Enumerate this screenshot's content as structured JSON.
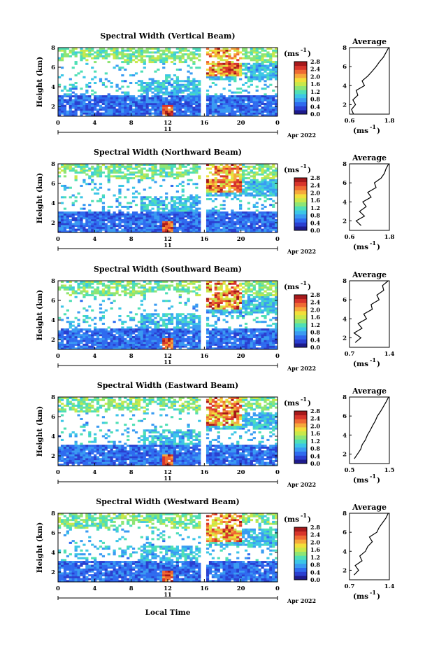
{
  "figure": {
    "xlabel": "Local Time",
    "date_label": "Apr 2022",
    "day_label": "11",
    "ylabel": "Height (km)",
    "unit_label": "(ms",
    "unit_sup": "-1",
    "unit_close": ")",
    "profile_title": "Average",
    "colors": {
      "scale": [
        "#1e1b8c",
        "#2a3fd0",
        "#2f6bef",
        "#3a9bf2",
        "#3cc6e6",
        "#4fdfb5",
        "#8ee574",
        "#c9e84a",
        "#f2df3a",
        "#f6a83a",
        "#ef6a33",
        "#d8352b",
        "#a6191b"
      ],
      "profile_line": "#000000"
    }
  },
  "chart_data": [
    {
      "type": "heatmap",
      "title": "Spectral Width (Vertical Beam)",
      "x_ticks": [
        "0",
        "4",
        "8",
        "12",
        "16",
        "20",
        "0"
      ],
      "x_range_hours": [
        0,
        24
      ],
      "y_ticks": [
        "2",
        "4",
        "6",
        "8"
      ],
      "y_range_km": [
        1,
        8
      ],
      "colorbar_ticks": [
        "2.8",
        "2.4",
        "2.0",
        "1.6",
        "1.2",
        "0.8",
        "0.4",
        "0.0"
      ],
      "colorbar_range": [
        0,
        2.8
      ],
      "data_gap_hours": [
        15.6,
        16.2
      ],
      "profile": {
        "title": "Average",
        "x_ticks": [
          "0.6",
          "1.8"
        ],
        "x_range": [
          0.6,
          1.8
        ],
        "y_ticks": [
          "2",
          "4",
          "6",
          "8"
        ],
        "y_range_km": [
          1,
          8
        ],
        "x_unit": "(ms",
        "x_unit_sup": "-1",
        "x_unit_close": ")",
        "heights_km": [
          1.0,
          1.5,
          2.0,
          2.5,
          3.0,
          3.5,
          4.0,
          4.5,
          5.0,
          5.5,
          6.0,
          6.5,
          7.0,
          7.5,
          8.0
        ],
        "values": [
          0.72,
          0.66,
          0.78,
          0.7,
          0.85,
          0.8,
          1.05,
          0.98,
          1.15,
          1.28,
          1.4,
          1.5,
          1.62,
          1.7,
          1.78
        ]
      }
    },
    {
      "type": "heatmap",
      "title": "Spectral Width (Northward Beam)",
      "x_ticks": [
        "0",
        "4",
        "8",
        "12",
        "16",
        "20",
        "0"
      ],
      "x_range_hours": [
        0,
        24
      ],
      "y_ticks": [
        "2",
        "4",
        "6",
        "8"
      ],
      "y_range_km": [
        1,
        8
      ],
      "colorbar_ticks": [
        "2.8",
        "2.4",
        "2.0",
        "1.6",
        "1.2",
        "0.8",
        "0.4",
        "0.0"
      ],
      "colorbar_range": [
        0,
        2.8
      ],
      "data_gap_hours": [
        15.6,
        16.2
      ],
      "profile": {
        "title": "Average",
        "x_ticks": [
          "0.6",
          "1.8"
        ],
        "x_range": [
          0.6,
          1.8
        ],
        "y_ticks": [
          "2",
          "4",
          "6",
          "8"
        ],
        "y_range_km": [
          1,
          8
        ],
        "x_unit": "(ms",
        "x_unit_sup": "-1",
        "x_unit_close": ")",
        "heights_km": [
          1.5,
          2.0,
          2.5,
          3.0,
          3.5,
          4.0,
          4.5,
          5.0,
          5.5,
          6.0,
          6.5,
          7.0,
          7.5,
          8.0
        ],
        "values": [
          0.95,
          0.8,
          1.05,
          0.9,
          1.1,
          1.0,
          1.25,
          1.15,
          1.4,
          1.35,
          1.55,
          1.65,
          1.7,
          1.78
        ]
      }
    },
    {
      "type": "heatmap",
      "title": "Spectral Width (Southward Beam)",
      "x_ticks": [
        "0",
        "4",
        "8",
        "12",
        "16",
        "20",
        "0"
      ],
      "x_range_hours": [
        0,
        24
      ],
      "y_ticks": [
        "2",
        "4",
        "6",
        "8"
      ],
      "y_range_km": [
        1,
        8
      ],
      "colorbar_ticks": [
        "2.8",
        "2.4",
        "2.0",
        "1.6",
        "1.2",
        "0.8",
        "0.4",
        "0.0"
      ],
      "colorbar_range": [
        0,
        2.8
      ],
      "data_gap_hours": [
        15.6,
        16.2
      ],
      "profile": {
        "title": "Average",
        "x_ticks": [
          "0.7",
          "1.4"
        ],
        "x_range": [
          0.7,
          1.4
        ],
        "y_ticks": [
          "2",
          "4",
          "6",
          "8"
        ],
        "y_range_km": [
          1,
          8
        ],
        "x_unit": "(ms",
        "x_unit_sup": "-1",
        "x_unit_close": ")",
        "heights_km": [
          1.5,
          2.0,
          2.5,
          3.0,
          3.5,
          4.0,
          4.5,
          5.0,
          5.5,
          6.0,
          6.5,
          7.0,
          7.5,
          8.0
        ],
        "values": [
          0.8,
          0.9,
          0.78,
          0.92,
          0.85,
          1.0,
          0.95,
          1.1,
          1.08,
          1.22,
          1.18,
          1.3,
          1.28,
          1.38
        ]
      }
    },
    {
      "type": "heatmap",
      "title": "Spectral Width (Eastward Beam)",
      "x_ticks": [
        "0",
        "4",
        "8",
        "12",
        "16",
        "20",
        "0"
      ],
      "x_range_hours": [
        0,
        24
      ],
      "y_ticks": [
        "2",
        "4",
        "6",
        "8"
      ],
      "y_range_km": [
        1,
        8
      ],
      "colorbar_ticks": [
        "2.8",
        "2.4",
        "2.0",
        "1.6",
        "1.2",
        "0.8",
        "0.4",
        "0.0"
      ],
      "colorbar_range": [
        0,
        2.8
      ],
      "data_gap_hours": [
        15.6,
        16.2
      ],
      "profile": {
        "title": "Average",
        "x_ticks": [
          "0.5",
          "1.5"
        ],
        "x_range": [
          0.5,
          1.5
        ],
        "y_ticks": [
          "2",
          "4",
          "6",
          "8"
        ],
        "y_range_km": [
          1,
          8
        ],
        "x_unit": "(ms",
        "x_unit_sup": "-1",
        "x_unit_close": ")",
        "heights_km": [
          1.5,
          2.0,
          2.5,
          3.0,
          3.5,
          4.0,
          4.5,
          5.0,
          5.5,
          6.0,
          6.5,
          7.0,
          7.5,
          8.0
        ],
        "values": [
          0.62,
          0.7,
          0.78,
          0.82,
          0.9,
          0.95,
          1.02,
          1.08,
          1.15,
          1.2,
          1.28,
          1.35,
          1.42,
          1.48
        ]
      }
    },
    {
      "type": "heatmap",
      "title": "Spectral Width (Westward Beam)",
      "x_ticks": [
        "0",
        "4",
        "8",
        "12",
        "16",
        "20",
        "0"
      ],
      "x_range_hours": [
        0,
        24
      ],
      "y_ticks": [
        "2",
        "4",
        "6",
        "8"
      ],
      "y_range_km": [
        1,
        8
      ],
      "colorbar_ticks": [
        "2.8",
        "2.4",
        "2.0",
        "1.6",
        "1.2",
        "0.8",
        "0.4",
        "0.0"
      ],
      "colorbar_range": [
        0,
        2.8
      ],
      "data_gap_hours": [
        15.6,
        16.2
      ],
      "profile": {
        "title": "Average",
        "x_ticks": [
          "0.7",
          "1.4"
        ],
        "x_range": [
          0.7,
          1.4
        ],
        "y_ticks": [
          "2",
          "4",
          "6",
          "8"
        ],
        "y_range_km": [
          1,
          8
        ],
        "x_unit": "(ms",
        "x_unit_sup": "-1",
        "x_unit_close": ")",
        "heights_km": [
          1.5,
          2.0,
          2.5,
          3.0,
          3.5,
          4.0,
          4.5,
          5.0,
          5.5,
          6.0,
          6.5,
          7.0,
          7.5,
          8.0
        ],
        "values": [
          0.78,
          0.86,
          0.8,
          0.92,
          0.88,
          0.98,
          1.02,
          1.1,
          1.05,
          1.18,
          1.22,
          1.28,
          1.34,
          1.38
        ]
      }
    }
  ]
}
